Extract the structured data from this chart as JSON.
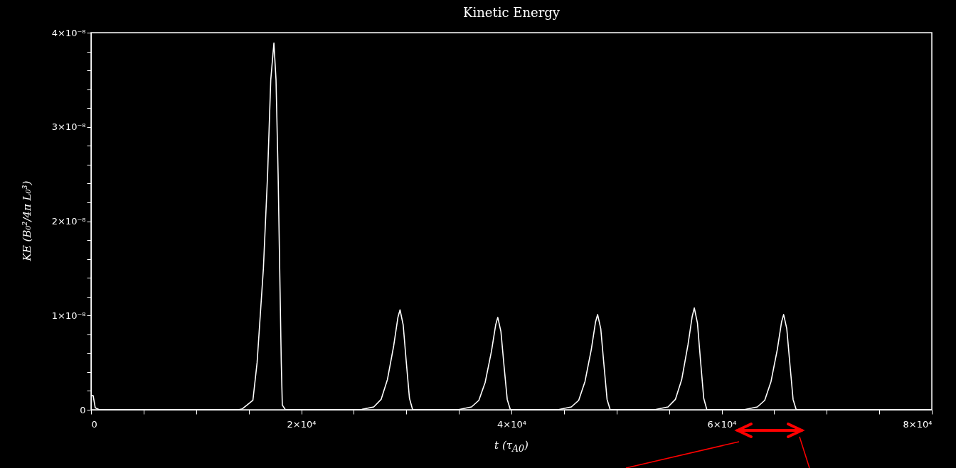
{
  "chart_data": {
    "type": "line",
    "title": "Kinetic Energy",
    "xlabel": "t (τ$_{A0}$)",
    "ylabel": "KE (B₀²/4π L₀³)",
    "x": [
      0,
      200,
      400,
      800,
      14000,
      14400,
      15400,
      15800,
      16400,
      16800,
      17100,
      17400,
      17600,
      17800,
      17950,
      18100,
      18200,
      18500,
      25600,
      26900,
      27600,
      28200,
      28800,
      29200,
      29400,
      29700,
      30000,
      30300,
      30600,
      34900,
      36200,
      36900,
      37500,
      38100,
      38500,
      38700,
      39000,
      39300,
      39600,
      39900,
      44400,
      45700,
      46400,
      47000,
      47600,
      48000,
      48200,
      48500,
      48800,
      49100,
      49400,
      53600,
      54900,
      55600,
      56200,
      56800,
      57200,
      57400,
      57700,
      58000,
      58300,
      58600,
      62100,
      63400,
      64100,
      64700,
      65300,
      65700,
      65900,
      66200,
      66500,
      66800,
      67100,
      80000
    ],
    "series": [
      {
        "color": "#ffffff",
        "values": [
          1.5e-09,
          1.5e-09,
          2e-10,
          0,
          0,
          1e-10,
          1e-09,
          5e-09,
          1.5e-08,
          2.5e-08,
          3.5e-08,
          3.89e-08,
          3.5e-08,
          2.5e-08,
          1.5e-08,
          5e-09,
          5e-10,
          0,
          0,
          3e-10,
          1.1e-09,
          3.2e-09,
          6.8e-09,
          9.8e-09,
          1.06e-08,
          9e-09,
          5e-09,
          1.2e-09,
          0,
          0,
          3e-10,
          1e-09,
          2.9e-09,
          6.2e-09,
          9e-09,
          9.8e-09,
          8.3e-09,
          4.6e-09,
          1.1e-09,
          0,
          0,
          3e-10,
          1e-09,
          3e-09,
          6.4e-09,
          9.3e-09,
          1.01e-08,
          8.6e-09,
          4.8e-09,
          1.1e-09,
          0,
          0,
          3e-10,
          1.1e-09,
          3.2e-09,
          6.9e-09,
          9.9e-09,
          1.08e-08,
          9.2e-09,
          5.1e-09,
          1.2e-09,
          0,
          0,
          3e-10,
          1e-09,
          3e-09,
          6.4e-09,
          9.3e-09,
          1.01e-08,
          8.6e-09,
          4.8e-09,
          1.1e-09,
          0,
          0
        ]
      }
    ],
    "xlim": [
      0,
      80000
    ],
    "ylim": [
      0,
      4e-08
    ],
    "xticks": [
      0,
      {
        "value": 5000,
        "label": null
      },
      {
        "value": 10000,
        "label": null
      },
      {
        "value": 15000,
        "label": null
      },
      {
        "value": 20000,
        "label": "2×10⁴"
      },
      {
        "value": 25000,
        "label": null
      },
      {
        "value": 30000,
        "label": null
      },
      {
        "value": 35000,
        "label": null
      },
      {
        "value": 40000,
        "label": "4×10⁴"
      },
      {
        "value": 45000,
        "label": null
      },
      {
        "value": 50000,
        "label": null
      },
      {
        "value": 55000,
        "label": null
      },
      {
        "value": 60000,
        "label": "6×10⁴"
      },
      {
        "value": 65000,
        "label": null
      },
      {
        "value": 70000,
        "label": null
      },
      {
        "value": 75000,
        "label": null
      },
      {
        "value": 80000,
        "label": "8×10⁴"
      }
    ],
    "yticks": [
      0,
      {
        "value": 2e-09,
        "label": null
      },
      {
        "value": 4e-09,
        "label": null
      },
      {
        "value": 6e-09,
        "label": null
      },
      {
        "value": 8e-09,
        "label": null
      },
      {
        "value": 1e-08,
        "label": "1×10⁻⁸"
      },
      {
        "value": 1.2e-08,
        "label": null
      },
      {
        "value": 1.4e-08,
        "label": null
      },
      {
        "value": 1.6e-08,
        "label": null
      },
      {
        "value": 1.8e-08,
        "label": null
      },
      {
        "value": 2e-08,
        "label": "2×10⁻⁸"
      },
      {
        "value": 2.2e-08,
        "label": null
      },
      {
        "value": 2.4e-08,
        "label": null
      },
      {
        "value": 2.6e-08,
        "label": null
      },
      {
        "value": 2.8e-08,
        "label": null
      },
      {
        "value": 3e-08,
        "label": "3×10⁻⁸"
      },
      {
        "value": 3.2e-08,
        "label": null
      },
      {
        "value": 3.4e-08,
        "label": null
      },
      {
        "value": 3.6e-08,
        "label": null
      },
      {
        "value": 3.8e-08,
        "label": null
      },
      {
        "value": 4e-08,
        "label": "4×10⁻⁸"
      }
    ]
  }
}
